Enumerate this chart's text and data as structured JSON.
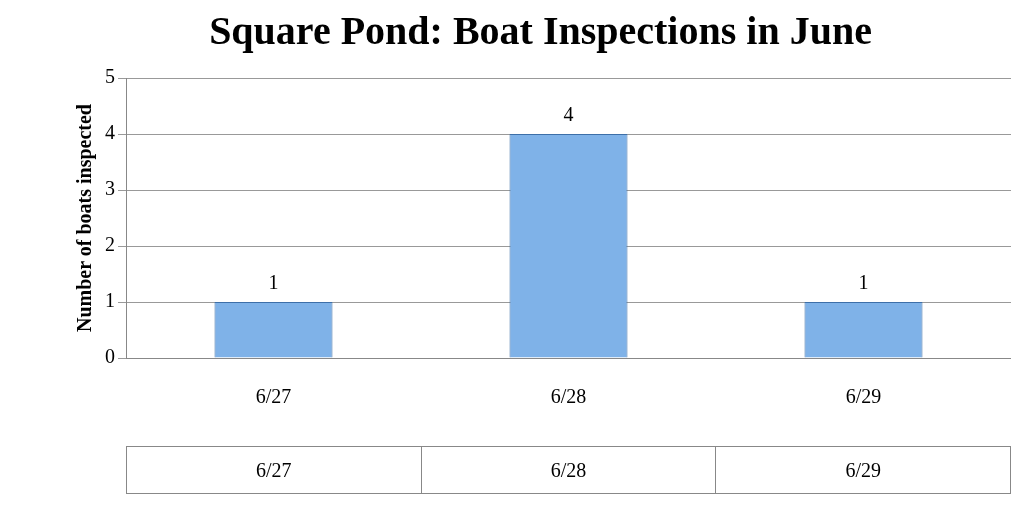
{
  "chart_data": {
    "type": "bar",
    "title": "Square Pond: Boat Inspections in June",
    "ylabel": "Number of boats inspected",
    "categories": [
      "6/27",
      "6/28",
      "6/29"
    ],
    "values": [
      1,
      4,
      1
    ],
    "color": "#7fb2e8",
    "ylim": [
      0,
      5
    ],
    "yticks": [
      0,
      1,
      2,
      3,
      4,
      5
    ],
    "grid": "y",
    "data_labels": true,
    "legend": false
  }
}
